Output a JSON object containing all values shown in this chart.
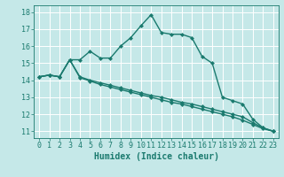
{
  "xlabel": "Humidex (Indice chaleur)",
  "bg_color": "#c5e8e8",
  "grid_color": "#ffffff",
  "line_color": "#1a7a6e",
  "xlim": [
    -0.5,
    23.5
  ],
  "ylim": [
    10.6,
    18.4
  ],
  "xticks": [
    0,
    1,
    2,
    3,
    4,
    5,
    6,
    7,
    8,
    9,
    10,
    11,
    12,
    13,
    14,
    15,
    16,
    17,
    18,
    19,
    20,
    21,
    22,
    23
  ],
  "yticks": [
    11,
    12,
    13,
    14,
    15,
    16,
    17,
    18
  ],
  "line1_x": [
    0,
    1,
    2,
    3,
    4,
    5,
    6,
    7,
    8,
    9,
    10,
    11,
    12,
    13,
    14,
    15,
    16,
    17,
    18,
    19,
    20,
    21,
    22,
    23
  ],
  "line1_y": [
    14.2,
    14.3,
    14.2,
    15.2,
    15.2,
    15.7,
    15.3,
    15.3,
    16.0,
    16.5,
    17.2,
    17.85,
    16.8,
    16.7,
    16.7,
    16.5,
    15.4,
    15.0,
    13.0,
    12.8,
    12.6,
    11.7,
    11.2,
    11.0
  ],
  "line2_x": [
    0,
    1,
    2,
    3,
    4,
    5,
    6,
    7,
    8,
    9,
    10,
    11,
    12,
    13,
    14,
    15,
    16,
    17,
    18,
    19,
    20,
    21,
    22,
    23
  ],
  "line2_y": [
    14.2,
    14.3,
    14.2,
    15.2,
    14.2,
    14.0,
    13.85,
    13.7,
    13.55,
    13.4,
    13.25,
    13.1,
    13.0,
    12.85,
    12.7,
    12.6,
    12.45,
    12.3,
    12.15,
    12.0,
    11.85,
    11.5,
    11.2,
    11.0
  ],
  "line3_x": [
    0,
    1,
    2,
    3,
    4,
    5,
    6,
    7,
    8,
    9,
    10,
    11,
    12,
    13,
    14,
    15,
    16,
    17,
    18,
    19,
    20,
    21,
    22,
    23
  ],
  "line3_y": [
    14.2,
    14.3,
    14.2,
    15.2,
    14.15,
    13.95,
    13.75,
    13.6,
    13.45,
    13.3,
    13.15,
    13.0,
    12.85,
    12.7,
    12.6,
    12.45,
    12.3,
    12.15,
    12.0,
    11.85,
    11.65,
    11.4,
    11.15,
    11.0
  ],
  "marker_size": 2.5,
  "line_width": 1.0,
  "tick_fontsize": 6,
  "xlabel_fontsize": 7
}
